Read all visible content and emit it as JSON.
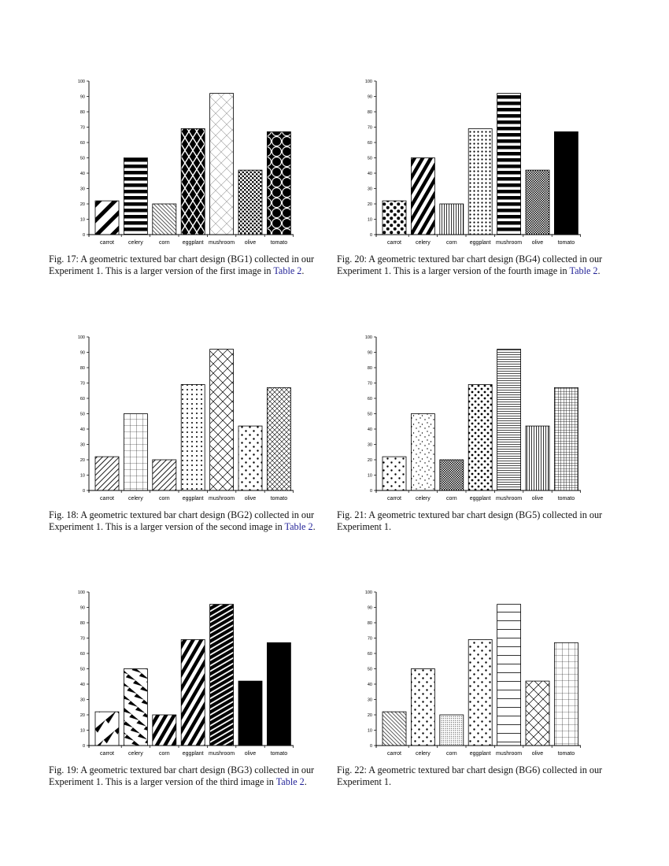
{
  "chart_data": [
    {
      "type": "bar",
      "figure": "Fig. 17",
      "categories": [
        "carrot",
        "celery",
        "corn",
        "eggplant",
        "mushroom",
        "olive",
        "tomato"
      ],
      "values": [
        22,
        50,
        20,
        69,
        92,
        42,
        67
      ],
      "ylim": [
        0,
        100
      ],
      "yticks": [
        0,
        10,
        20,
        30,
        40,
        50,
        60,
        70,
        80,
        90,
        100
      ],
      "textures": [
        "wide-diagonal-stripes",
        "thick-horizontal-stripes",
        "thin-diagonal-hatch",
        "black-diamond-lattice",
        "light-crosshatch",
        "dense-dots",
        "large-circles"
      ],
      "grid": false
    },
    {
      "type": "bar",
      "figure": "Fig. 18",
      "categories": [
        "carrot",
        "celery",
        "corn",
        "eggplant",
        "mushroom",
        "olive",
        "tomato"
      ],
      "values": [
        22,
        50,
        20,
        69,
        92,
        42,
        67
      ],
      "ylim": [
        0,
        100
      ],
      "yticks": [
        0,
        10,
        20,
        30,
        40,
        50,
        60,
        70,
        80,
        90,
        100
      ],
      "textures": [
        "diagonal-hatch",
        "grid",
        "diagonal-hatch",
        "dot-grid",
        "crosshatch",
        "sparse-dots",
        "dense-crosshatch"
      ],
      "grid": false
    },
    {
      "type": "bar",
      "figure": "Fig. 19",
      "categories": [
        "carrot",
        "celery",
        "corn",
        "eggplant",
        "mushroom",
        "olive",
        "tomato"
      ],
      "values": [
        22,
        50,
        20,
        69,
        92,
        42,
        67
      ],
      "ylim": [
        0,
        100
      ],
      "yticks": [
        0,
        10,
        20,
        30,
        40,
        50,
        60,
        70,
        80,
        90,
        100
      ],
      "textures": [
        "sparse-wedges",
        "diagonal-wedges",
        "thick-diagonal",
        "thick-diagonal",
        "dense-diagonal",
        "solid",
        "solid"
      ],
      "grid": false
    },
    {
      "type": "bar",
      "figure": "Fig. 20",
      "categories": [
        "carrot",
        "celery",
        "corn",
        "eggplant",
        "mushroom",
        "olive",
        "tomato"
      ],
      "values": [
        22,
        50,
        20,
        69,
        92,
        42,
        67
      ],
      "ylim": [
        0,
        100
      ],
      "yticks": [
        0,
        10,
        20,
        30,
        40,
        50,
        60,
        70,
        80,
        90,
        100
      ],
      "textures": [
        "large-dots",
        "thick-diagonal",
        "vertical-lines",
        "small-dot-grid",
        "thick-horizontal-stripes",
        "fine-checker",
        "solid"
      ],
      "grid": false
    },
    {
      "type": "bar",
      "figure": "Fig. 21",
      "categories": [
        "carrot",
        "celery",
        "corn",
        "eggplant",
        "mushroom",
        "olive",
        "tomato"
      ],
      "values": [
        22,
        50,
        20,
        69,
        92,
        42,
        67
      ],
      "ylim": [
        0,
        100
      ],
      "yticks": [
        0,
        10,
        20,
        30,
        40,
        50,
        60,
        70,
        80,
        90,
        100
      ],
      "textures": [
        "sparse-dots",
        "scattered-dots",
        "fine-checker",
        "medium-dots",
        "horizontal-lines",
        "vertical-lines",
        "dense-grid"
      ],
      "grid": false
    },
    {
      "type": "bar",
      "figure": "Fig. 22",
      "categories": [
        "carrot",
        "celery",
        "corn",
        "eggplant",
        "mushroom",
        "olive",
        "tomato"
      ],
      "values": [
        22,
        50,
        20,
        69,
        92,
        42,
        67
      ],
      "ylim": [
        0,
        100
      ],
      "yticks": [
        0,
        10,
        20,
        30,
        40,
        50,
        60,
        70,
        80,
        90,
        100
      ],
      "textures": [
        "thin-diagonal-hatch",
        "sparse-dots",
        "fine-dots",
        "sparse-dots",
        "wide-horizontal-lines",
        "crosshatch",
        "grid"
      ],
      "grid": false
    }
  ],
  "captions": [
    {
      "label": "Fig. 17:",
      "text": " A geometric textured bar chart design (BG1) collected in our Experiment 1. This is a larger version of the first image in ",
      "ref": "Table 2",
      "end": "."
    },
    {
      "label": "Fig. 18:",
      "text": " A geometric textured bar chart design (BG2) collected in our Experiment 1. This is a larger version of the second image in ",
      "ref": "Table 2",
      "end": "."
    },
    {
      "label": "Fig. 19:",
      "text": " A geometric textured bar chart design (BG3) collected in our Experiment 1. This is a larger version of the third image in ",
      "ref": "Table 2",
      "end": "."
    },
    {
      "label": "Fig. 20:",
      "text": " A geometric textured bar chart design (BG4) collected in our Experiment 1. This is a larger version of the fourth image in ",
      "ref": "Table 2",
      "end": "."
    },
    {
      "label": "Fig. 21:",
      "text": " A geometric textured bar chart design (BG5) collected in our Experiment 1.",
      "ref": "",
      "end": ""
    },
    {
      "label": "Fig. 22:",
      "text": " A geometric textured bar chart design (BG6) collected in our Experiment 1.",
      "ref": "",
      "end": ""
    }
  ],
  "colors": {
    "ink": "#000000",
    "link": "#1f1f96"
  }
}
